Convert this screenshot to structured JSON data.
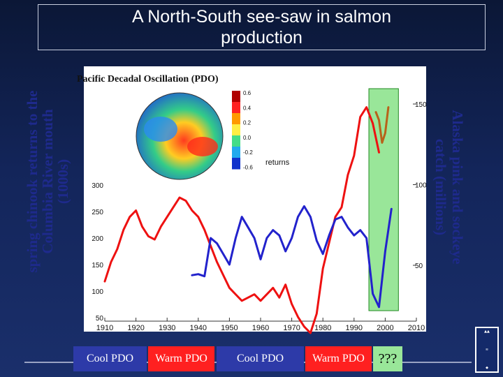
{
  "slide": {
    "title_line1": "A North-South see-saw in salmon",
    "title_line2": "production"
  },
  "left_axis_label": [
    "spring chinook returns to the",
    "Columbia River mouth",
    "(1000s)"
  ],
  "right_axis_label": [
    "Alaska pink and sockeye",
    "catch (millions)"
  ],
  "inset": {
    "title": "Pacific Decadal Oscillation (PDO)",
    "colorbar_ticks": [
      "0.6",
      "0.4",
      "0.2",
      "0.0",
      "-0.2",
      "-0.6"
    ],
    "partial_text": "returns"
  },
  "pdo_regimes": [
    {
      "label": "Cool PDO",
      "phase": "cool"
    },
    {
      "label": "Warm PDO",
      "phase": "warm"
    },
    {
      "label": "Cool PDO",
      "phase": "cool"
    },
    {
      "label": "Warm PDO",
      "phase": "warm"
    },
    {
      "label": "???",
      "phase": "unknown"
    }
  ],
  "colors": {
    "alaska_line": "#ee1111",
    "columbia_line": "#2222cc",
    "recent_alaska": "#b8621a",
    "highlight": "#99e699",
    "cool": "#2d3aa8",
    "warm": "#ff2020"
  },
  "chart_data": {
    "type": "line",
    "title": "A North-South see-saw in salmon production",
    "xlabel": "",
    "ylabel": "spring chinook returns to the Columbia River mouth (1000s)",
    "y2label": "Alaska pink and sockeye catch (millions)",
    "xlim": [
      1910,
      2010
    ],
    "ylim_left": [
      50,
      300
    ],
    "ylim_right": [
      0,
      150
    ],
    "x_ticks": [
      1910,
      1920,
      1930,
      1940,
      1950,
      1960,
      1970,
      1980,
      1990,
      2000,
      2010
    ],
    "y_ticks_left": [
      50,
      100,
      150,
      200,
      250,
      300
    ],
    "y_ticks_right": [
      50,
      100,
      150
    ],
    "highlight_x_range": [
      1997,
      2002
    ],
    "series": [
      {
        "name": "Alaska pink and sockeye catch",
        "axis": "right",
        "x": [
          1910,
          1912,
          1914,
          1916,
          1918,
          1920,
          1922,
          1924,
          1926,
          1928,
          1930,
          1932,
          1934,
          1936,
          1938,
          1940,
          1942,
          1944,
          1946,
          1948,
          1950,
          1952,
          1954,
          1956,
          1958,
          1960,
          1962,
          1964,
          1966,
          1968,
          1970,
          1972,
          1974,
          1976,
          1978,
          1980,
          1982,
          1984,
          1986,
          1988,
          1990,
          1992,
          1994,
          1996,
          1998
        ],
        "values": [
          40,
          52,
          60,
          72,
          80,
          84,
          74,
          68,
          66,
          74,
          80,
          86,
          92,
          90,
          84,
          80,
          72,
          62,
          52,
          44,
          36,
          32,
          28,
          30,
          32,
          28,
          32,
          36,
          30,
          38,
          26,
          18,
          12,
          8,
          20,
          48,
          64,
          80,
          86,
          106,
          118,
          142,
          148,
          138,
          120
        ]
      },
      {
        "name": "recent Alaska catch",
        "axis": "right",
        "x": [
          1997,
          1998,
          1999,
          2000,
          2001
        ],
        "values": [
          145,
          140,
          126,
          132,
          148
        ]
      },
      {
        "name": "spring chinook returns to the Columbia River mouth",
        "axis": "left",
        "x": [
          1938,
          1940,
          1942,
          1944,
          1946,
          1948,
          1950,
          1952,
          1954,
          1956,
          1958,
          1960,
          1962,
          1964,
          1966,
          1968,
          1970,
          1972,
          1974,
          1976,
          1978,
          1980,
          1982,
          1984,
          1986,
          1988,
          1990,
          1992,
          1994,
          1996,
          1998,
          2000,
          2002
        ],
        "values": [
          130,
          132,
          128,
          200,
          190,
          170,
          150,
          200,
          240,
          220,
          200,
          160,
          200,
          215,
          205,
          175,
          200,
          240,
          260,
          240,
          195,
          170,
          205,
          235,
          240,
          220,
          205,
          215,
          200,
          95,
          70,
          175,
          255
        ]
      }
    ]
  }
}
